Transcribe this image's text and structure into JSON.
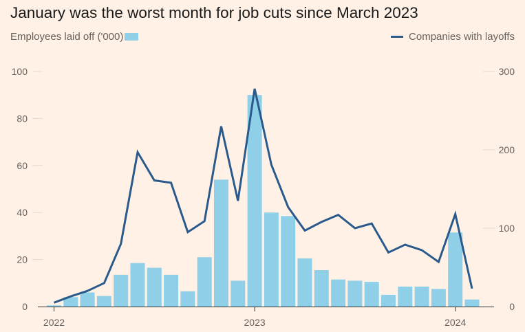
{
  "chart_data": {
    "type": "bar+line",
    "title": "January was the worst month for job cuts since March 2023",
    "series": [
      {
        "name": "Employees laid off ('000)",
        "type": "bar",
        "axis": "left",
        "color": "#8fd0e8",
        "values": [
          0.5,
          4,
          6,
          4.5,
          13.5,
          18.5,
          16.5,
          13.5,
          6.5,
          21,
          54,
          11,
          90,
          40,
          38.5,
          20.5,
          15.5,
          11.5,
          11,
          10.5,
          5,
          8.5,
          8.5,
          7.5,
          31.5,
          3
        ]
      },
      {
        "name": "Companies with layoffs",
        "type": "line",
        "axis": "right",
        "color": "#2a5a8c",
        "values": [
          5,
          13,
          20,
          30,
          80,
          197,
          161,
          158,
          95,
          109,
          230,
          135,
          278,
          181,
          127,
          97,
          108,
          117,
          100,
          106,
          69,
          79,
          72,
          57,
          118,
          23
        ]
      }
    ],
    "x": [
      "2022-01",
      "2022-02",
      "2022-03",
      "2022-04",
      "2022-05",
      "2022-06",
      "2022-07",
      "2022-08",
      "2022-09",
      "2022-10",
      "2022-11",
      "2022-12",
      "2023-01",
      "2023-02",
      "2023-03",
      "2023-04",
      "2023-05",
      "2023-06",
      "2023-07",
      "2023-08",
      "2023-09",
      "2023-10",
      "2023-11",
      "2023-12",
      "2024-01",
      "2024-02"
    ],
    "x_tick_labels": [
      {
        "at": "2022-01",
        "label": "2022"
      },
      {
        "at": "2023-01",
        "label": "2023"
      },
      {
        "at": "2024-01",
        "label": "2024"
      }
    ],
    "y_left": {
      "ticks": [
        0,
        20,
        40,
        60,
        80,
        100
      ],
      "range": [
        0,
        100
      ]
    },
    "y_right": {
      "ticks": [
        0,
        100,
        200,
        300
      ],
      "range": [
        0,
        300
      ]
    },
    "legend": {
      "left": "Employees laid off ('000)",
      "right": "Companies with layoffs"
    },
    "grid": true,
    "background": "#fff1e5",
    "axis_color": "#33302e",
    "grid_color": "#e6d9ce"
  }
}
